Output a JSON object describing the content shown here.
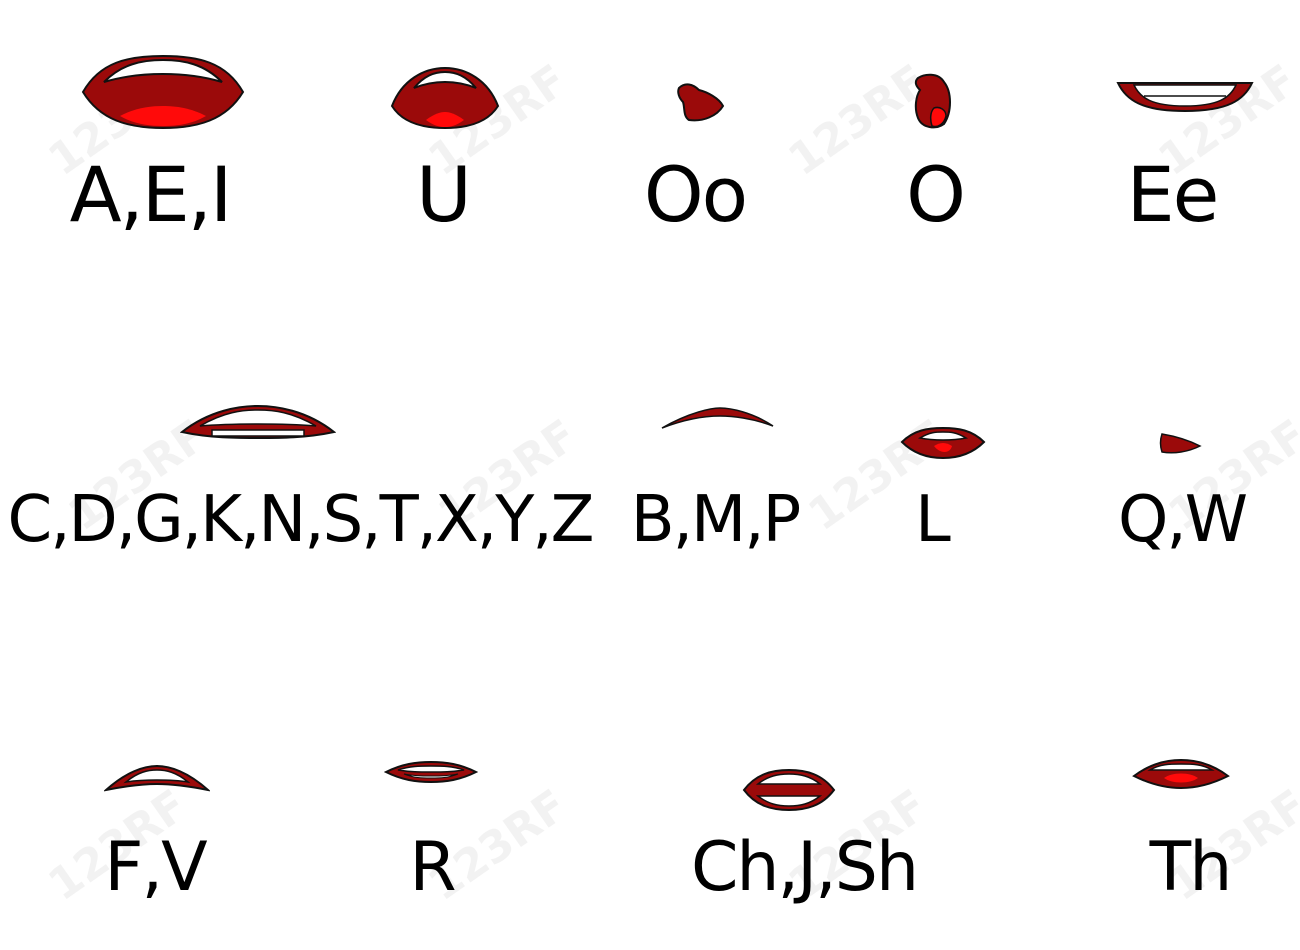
{
  "watermark": "123RF",
  "colors": {
    "lip": "#9b0a0a",
    "tongue": "#ff0a0a",
    "teeth": "#ffffff",
    "outline": "#111111"
  },
  "rows": [
    [
      {
        "id": "aei",
        "label": "A,E,I",
        "shape": "aei"
      },
      {
        "id": "u",
        "label": "U",
        "shape": "u"
      },
      {
        "id": "oo",
        "label": "Oo",
        "shape": "oo"
      },
      {
        "id": "o",
        "label": "O",
        "shape": "o"
      },
      {
        "id": "ee",
        "label": "Ee",
        "shape": "ee"
      }
    ],
    [
      {
        "id": "cdg",
        "label": "C,D,G,K,N,S,T,X,Y,Z",
        "shape": "cdg"
      },
      {
        "id": "bmp",
        "label": "B,M,P",
        "shape": "bmp"
      },
      {
        "id": "l",
        "label": "L",
        "shape": "l"
      },
      {
        "id": "qw",
        "label": "Q,W",
        "shape": "qw"
      }
    ],
    [
      {
        "id": "fv",
        "label": "F,V",
        "shape": "fv"
      },
      {
        "id": "r",
        "label": "R",
        "shape": "r"
      },
      {
        "id": "chjsh",
        "label": "Ch,J,Sh",
        "shape": "chjsh"
      },
      {
        "id": "th",
        "label": "Th",
        "shape": "th"
      }
    ]
  ]
}
